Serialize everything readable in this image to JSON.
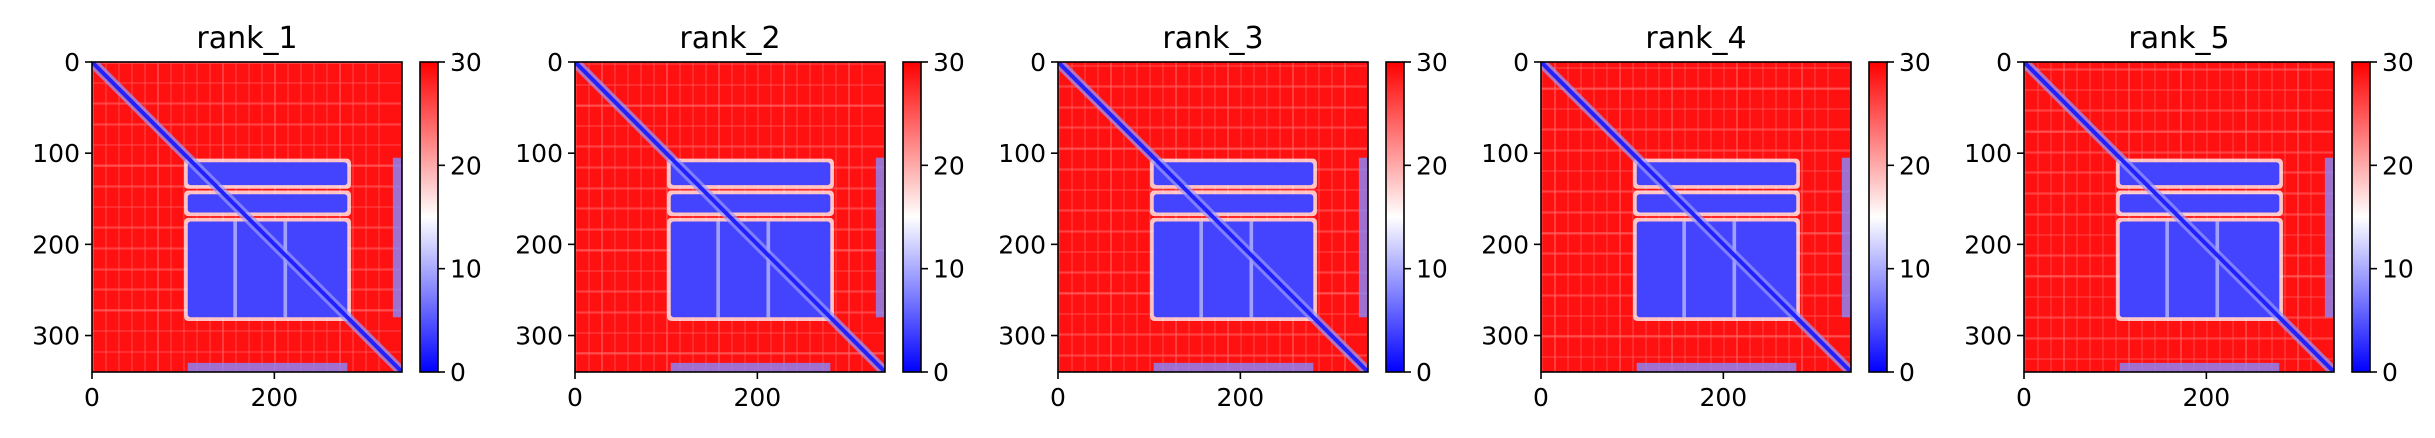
{
  "chart_data": {
    "type": "heatmap",
    "n_panels": 5,
    "matrix_size": 340,
    "panels": [
      {
        "title": "rank_1"
      },
      {
        "title": "rank_2"
      },
      {
        "title": "rank_3"
      },
      {
        "title": "rank_4"
      },
      {
        "title": "rank_5"
      }
    ],
    "x_ticks": [
      0,
      200
    ],
    "y_ticks": [
      0,
      100,
      200,
      300
    ],
    "xlim": [
      0,
      340
    ],
    "ylim": [
      340,
      0
    ],
    "colorbar": {
      "range": [
        0,
        30
      ],
      "ticks": [
        0,
        10,
        20,
        30
      ],
      "colormap": "bwr",
      "colors": {
        "low": "#0000ff",
        "mid": "#ffffff",
        "high": "#ff0000"
      }
    },
    "structure": {
      "background_value": 29,
      "diagonal_value": 2,
      "block_rows": [
        [
          110,
          135
        ],
        [
          145,
          165
        ],
        [
          175,
          280
        ]
      ],
      "block_cols": [
        [
          105,
          280
        ]
      ],
      "block_value": 4,
      "edge_cols": [
        [
          330,
          340
        ]
      ],
      "edge_rows": [
        [
          330,
          340
        ]
      ],
      "edge_value": 8
    }
  }
}
